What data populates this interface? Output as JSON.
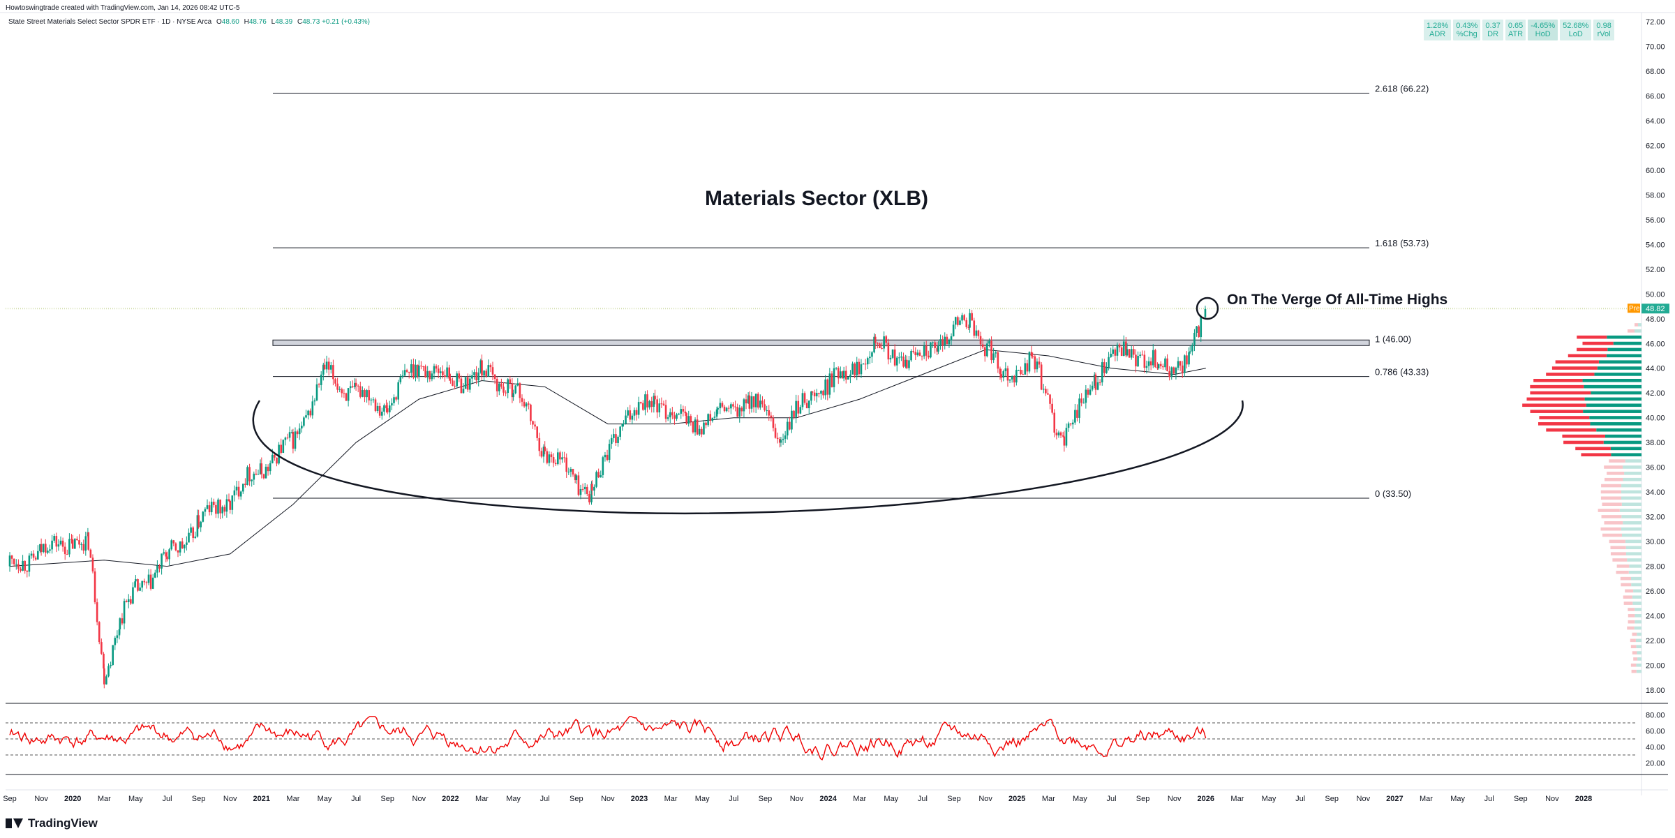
{
  "header": {
    "created_by": "Howtoswingtrade created with TradingView.com, Jan 14, 2026 08:42 UTC-5",
    "symbol": "State Street Materials Select Sector SPDR ETF · 1D · NYSE Arca",
    "o_label": "O",
    "o_value": "48.60",
    "h_label": "H",
    "h_value": "48.76",
    "l_label": "L",
    "l_value": "48.39",
    "c_label": "C",
    "c_value": "48.73",
    "change": "+0.21 (+0.43%)"
  },
  "stats": [
    {
      "value": "1.28%",
      "label": "ADR"
    },
    {
      "value": "0.43%",
      "label": "%Chg"
    },
    {
      "value": "0.37",
      "label": "DR"
    },
    {
      "value": "0.65",
      "label": "ATR"
    },
    {
      "value": "-4.65%",
      "label": "HoD"
    },
    {
      "value": "52.68%",
      "label": "LoD"
    },
    {
      "value": "0.98",
      "label": "rVol"
    }
  ],
  "logo_text": "TradingView",
  "colors": {
    "up": "#089981",
    "down": "#f23645",
    "rsi": "#f00000",
    "price_tag": "#22ab94",
    "pre_tag": "#ff9800",
    "fib": "#555555"
  },
  "chart_data": {
    "type": "candlestick",
    "title": "Materials Sector (XLB)",
    "annotation": "On The Verge Of All-Time Highs",
    "ylim": [
      17,
      72
    ],
    "y_ticks": [
      "18.00",
      "20.00",
      "22.00",
      "24.00",
      "26.00",
      "28.00",
      "30.00",
      "32.00",
      "34.00",
      "36.00",
      "38.00",
      "40.00",
      "42.00",
      "44.00",
      "46.00",
      "48.00",
      "50.00",
      "52.00",
      "54.00",
      "56.00",
      "58.00",
      "60.00",
      "62.00",
      "64.00",
      "66.00",
      "68.00",
      "70.00",
      "72.00"
    ],
    "x_ticks": [
      "Sep",
      "Nov",
      "2020",
      "Mar",
      "May",
      "Jul",
      "Sep",
      "Nov",
      "2021",
      "Mar",
      "May",
      "Jul",
      "Sep",
      "Nov",
      "2022",
      "Mar",
      "May",
      "Jul",
      "Sep",
      "Nov",
      "2023",
      "Mar",
      "May",
      "Jul",
      "Sep",
      "Nov",
      "2024",
      "Mar",
      "May",
      "Jul",
      "Sep",
      "Nov",
      "2025",
      "Mar",
      "May",
      "Jul",
      "Sep",
      "Nov",
      "2026",
      "Mar",
      "May",
      "Jul",
      "Sep",
      "Nov",
      "2027",
      "Mar",
      "May",
      "Jul",
      "Sep",
      "Nov",
      "2028"
    ],
    "fib_levels": [
      {
        "label": "2.618 (66.22)",
        "value": 66.22
      },
      {
        "label": "1.618 (53.73)",
        "value": 53.73
      },
      {
        "label": "1 (46.00)",
        "value": 46.0
      },
      {
        "label": "0.786 (43.33)",
        "value": 43.33
      },
      {
        "label": "0 (33.50)",
        "value": 33.5
      }
    ],
    "price_series": [
      {
        "date": "2019-09",
        "value": 28.0
      },
      {
        "date": "2019-11",
        "value": 29.2
      },
      {
        "date": "2020-01",
        "value": 30.2
      },
      {
        "date": "2020-02",
        "value": 29.5
      },
      {
        "date": "2020-03",
        "value": 19.5
      },
      {
        "date": "2020-04",
        "value": 23.5
      },
      {
        "date": "2020-05",
        "value": 26.0
      },
      {
        "date": "2020-07",
        "value": 28.5
      },
      {
        "date": "2020-09",
        "value": 31.5
      },
      {
        "date": "2020-11",
        "value": 33.5
      },
      {
        "date": "2021-01",
        "value": 36.0
      },
      {
        "date": "2021-03",
        "value": 38.0
      },
      {
        "date": "2021-05",
        "value": 43.5
      },
      {
        "date": "2021-07",
        "value": 42.0
      },
      {
        "date": "2021-09",
        "value": 41.0
      },
      {
        "date": "2021-11",
        "value": 44.5
      },
      {
        "date": "2022-01",
        "value": 43.0
      },
      {
        "date": "2022-03",
        "value": 43.5
      },
      {
        "date": "2022-05",
        "value": 42.5
      },
      {
        "date": "2022-07",
        "value": 37.5
      },
      {
        "date": "2022-09",
        "value": 35.0
      },
      {
        "date": "2022-10",
        "value": 34.0
      },
      {
        "date": "2022-12",
        "value": 40.0
      },
      {
        "date": "2023-02",
        "value": 41.5
      },
      {
        "date": "2023-04",
        "value": 39.5
      },
      {
        "date": "2023-06",
        "value": 40.0
      },
      {
        "date": "2023-08",
        "value": 41.5
      },
      {
        "date": "2023-10",
        "value": 38.5
      },
      {
        "date": "2023-12",
        "value": 42.0
      },
      {
        "date": "2024-02",
        "value": 43.5
      },
      {
        "date": "2024-04",
        "value": 46.0
      },
      {
        "date": "2024-06",
        "value": 44.5
      },
      {
        "date": "2024-08",
        "value": 46.0
      },
      {
        "date": "2024-10",
        "value": 48.0
      },
      {
        "date": "2024-12",
        "value": 43.5
      },
      {
        "date": "2025-02",
        "value": 44.5
      },
      {
        "date": "2025-04",
        "value": 38.0
      },
      {
        "date": "2025-06",
        "value": 43.5
      },
      {
        "date": "2025-08",
        "value": 45.5
      },
      {
        "date": "2025-10",
        "value": 44.0
      },
      {
        "date": "2025-12",
        "value": 44.5
      },
      {
        "date": "2026-01",
        "value": 48.73
      }
    ],
    "ma_series": [
      {
        "date": "2019-09",
        "value": 28.0
      },
      {
        "date": "2020-03",
        "value": 28.5
      },
      {
        "date": "2020-07",
        "value": 28.0
      },
      {
        "date": "2020-11",
        "value": 29.0
      },
      {
        "date": "2021-03",
        "value": 33.0
      },
      {
        "date": "2021-07",
        "value": 38.0
      },
      {
        "date": "2021-11",
        "value": 41.5
      },
      {
        "date": "2022-03",
        "value": 43.0
      },
      {
        "date": "2022-07",
        "value": 42.5
      },
      {
        "date": "2022-11",
        "value": 39.5
      },
      {
        "date": "2023-03",
        "value": 39.5
      },
      {
        "date": "2023-07",
        "value": 40.0
      },
      {
        "date": "2023-11",
        "value": 40.0
      },
      {
        "date": "2024-03",
        "value": 41.5
      },
      {
        "date": "2024-07",
        "value": 43.5
      },
      {
        "date": "2024-11",
        "value": 45.5
      },
      {
        "date": "2025-03",
        "value": 45.0
      },
      {
        "date": "2025-07",
        "value": 44.0
      },
      {
        "date": "2025-11",
        "value": 43.5
      },
      {
        "date": "2026-01",
        "value": 44.0
      }
    ],
    "last_price_tag": "48.82",
    "pre_tag": "Pre",
    "rsi": {
      "ticks": [
        "80.00",
        "60.00",
        "40.00",
        "20.00"
      ],
      "levels": [
        70,
        50,
        30
      ],
      "ylim": [
        10,
        90
      ]
    }
  }
}
